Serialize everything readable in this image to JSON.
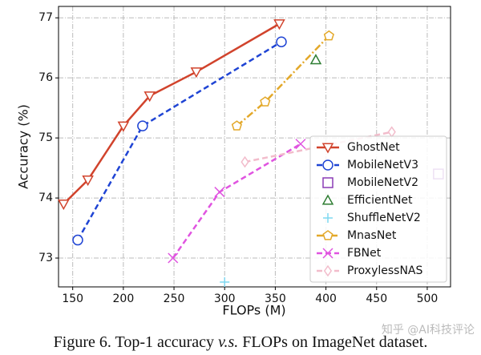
{
  "chart_data": {
    "type": "line",
    "xlabel": "FLOPs (M)",
    "ylabel": "Accuracy (%)",
    "caption": [
      "Figure 6. Top-1 accuracy ",
      "v.s.",
      " FLOPs on ImageNet dataset."
    ],
    "watermark": "知乎 @AI科技评论",
    "xlim": [
      136,
      523
    ],
    "ylim": [
      72.52,
      77.19
    ],
    "xticks": [
      150,
      200,
      250,
      300,
      350,
      400,
      450,
      500
    ],
    "yticks": [
      73,
      74,
      75,
      76,
      77
    ],
    "grid": true,
    "legend": "right",
    "series": [
      {
        "name": "GhostNet",
        "color": "#d1432c",
        "marker": "triangle-down",
        "line": "solid",
        "x": [
          141,
          165,
          200,
          226,
          272,
          354
        ],
        "values": [
          73.9,
          74.3,
          75.2,
          75.7,
          76.1,
          76.9
        ]
      },
      {
        "name": "MobileNetV3",
        "color": "#1f44d4",
        "marker": "circle",
        "line": "dashed",
        "x": [
          155,
          219,
          356
        ],
        "values": [
          73.3,
          75.2,
          76.6
        ]
      },
      {
        "name": "MobileNetV2",
        "color": "#8a3bb5",
        "marker": "square",
        "line": "none",
        "x": [
          511
        ],
        "values": [
          74.4
        ]
      },
      {
        "name": "EfficientNet",
        "color": "#2e7d32",
        "marker": "triangle-up",
        "line": "none",
        "x": [
          390
        ],
        "values": [
          76.3
        ]
      },
      {
        "name": "ShuffleNetV2",
        "color": "#7fd8f0",
        "marker": "plus",
        "line": "none",
        "x": [
          300
        ],
        "values": [
          72.6
        ]
      },
      {
        "name": "MnasNet",
        "color": "#e3a829",
        "marker": "pentagon",
        "line": "dashdot",
        "x": [
          312,
          340,
          403
        ],
        "values": [
          75.2,
          75.6,
          76.7
        ]
      },
      {
        "name": "FBNet",
        "color": "#e054e0",
        "marker": "x",
        "line": "dashed",
        "x": [
          249,
          295,
          375
        ],
        "values": [
          73.0,
          74.1,
          74.9
        ]
      },
      {
        "name": "ProxylessNAS",
        "color": "#f2bccb",
        "marker": "diamond",
        "line": "dashed",
        "x": [
          320,
          465
        ],
        "values": [
          74.6,
          75.1
        ]
      }
    ]
  }
}
